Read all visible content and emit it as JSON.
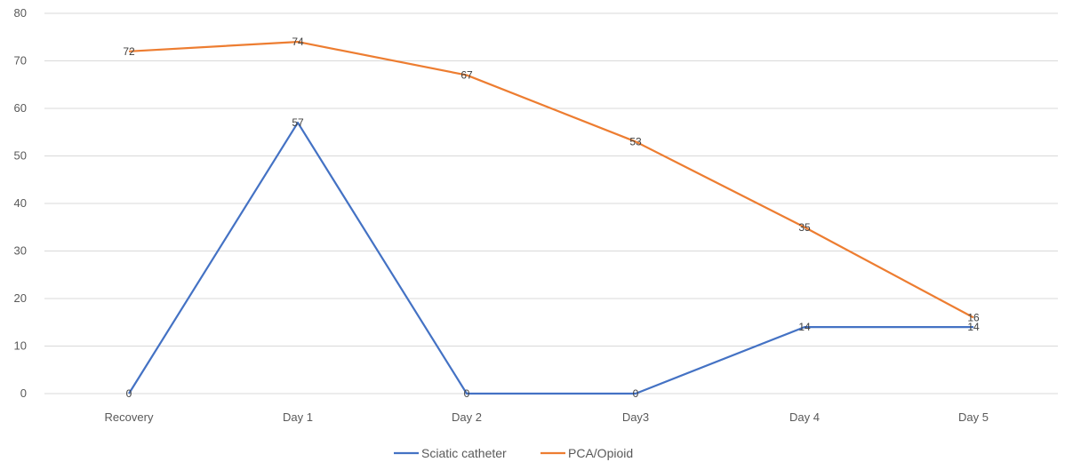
{
  "chart_data": {
    "type": "line",
    "categories": [
      "Recovery",
      "Day 1",
      "Day 2",
      "Day3",
      "Day 4",
      "Day 5"
    ],
    "series": [
      {
        "name": "Sciatic catheter",
        "values": [
          0,
          57,
          0,
          0,
          14,
          14
        ],
        "color": "#4472c4",
        "data_labels": [
          "0",
          "57",
          "0",
          "0",
          "14",
          "14"
        ]
      },
      {
        "name": "PCA/Opioid",
        "values": [
          72,
          74,
          67,
          53,
          35,
          16
        ],
        "color": "#ed7d31",
        "data_labels": [
          "72",
          "74",
          "67",
          "53",
          "35",
          "16"
        ]
      }
    ],
    "ylim": [
      0,
      80
    ],
    "yticks": [
      "0",
      "10",
      "20",
      "30",
      "40",
      "50",
      "60",
      "70",
      "80"
    ],
    "grid": true,
    "legend_position": "bottom"
  }
}
